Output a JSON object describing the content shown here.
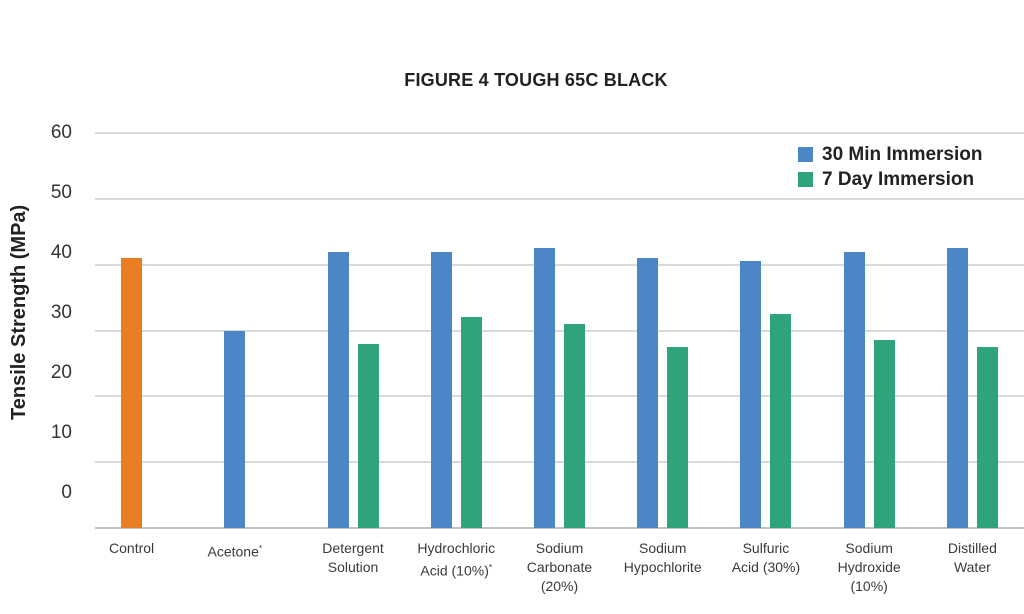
{
  "chart_data": {
    "type": "bar",
    "title": "FIGURE 4 TOUGH 65C BLACK",
    "ylabel": "Tensile Strength (MPa)",
    "ylim": [
      0,
      60
    ],
    "yticks": [
      0,
      10,
      20,
      30,
      40,
      50,
      60
    ],
    "grid": true,
    "legend_position": "top-right",
    "categories": [
      "Control",
      "Acetone*",
      "Detergent Solution",
      "Hydrochloric Acid (10%)*",
      "Sodium Carbonate (20%)",
      "Sodium Hypochlorite",
      "Sulfuric Acid (30%)",
      "Sodium Hydroxide (10%)",
      "Distilled Water"
    ],
    "category_label_lines": [
      [
        "Control"
      ],
      [
        "Acetone*"
      ],
      [
        "Detergent",
        "Solution"
      ],
      [
        "Hydrochloric",
        "Acid (10%)*"
      ],
      [
        "Sodium",
        "Carbonate",
        "(20%)"
      ],
      [
        "Sodium",
        "Hypochlorite"
      ],
      [
        "Sulfuric",
        "Acid (30%)"
      ],
      [
        "Sodium",
        "Hydroxide",
        "(10%)"
      ],
      [
        "Distilled",
        "Water"
      ]
    ],
    "series": [
      {
        "name": "30 Min Immersion",
        "color": "#4C86C6",
        "values": [
          41,
          30,
          42,
          42,
          42.5,
          41,
          40.5,
          42,
          42.5
        ]
      },
      {
        "name": "7 Day Immersion",
        "color": "#2FA37C",
        "values": [
          null,
          null,
          28,
          32,
          31,
          27.5,
          32.5,
          28.5,
          27.5
        ]
      }
    ],
    "control_category_index": 0,
    "control_bar_color": "#E87D22",
    "colors": {
      "gridline": "#DADADA",
      "axis_line": "#C1C1C1",
      "title_text": "#222222",
      "tick_text": "#333333",
      "category_text": "#3A3A3A"
    }
  }
}
